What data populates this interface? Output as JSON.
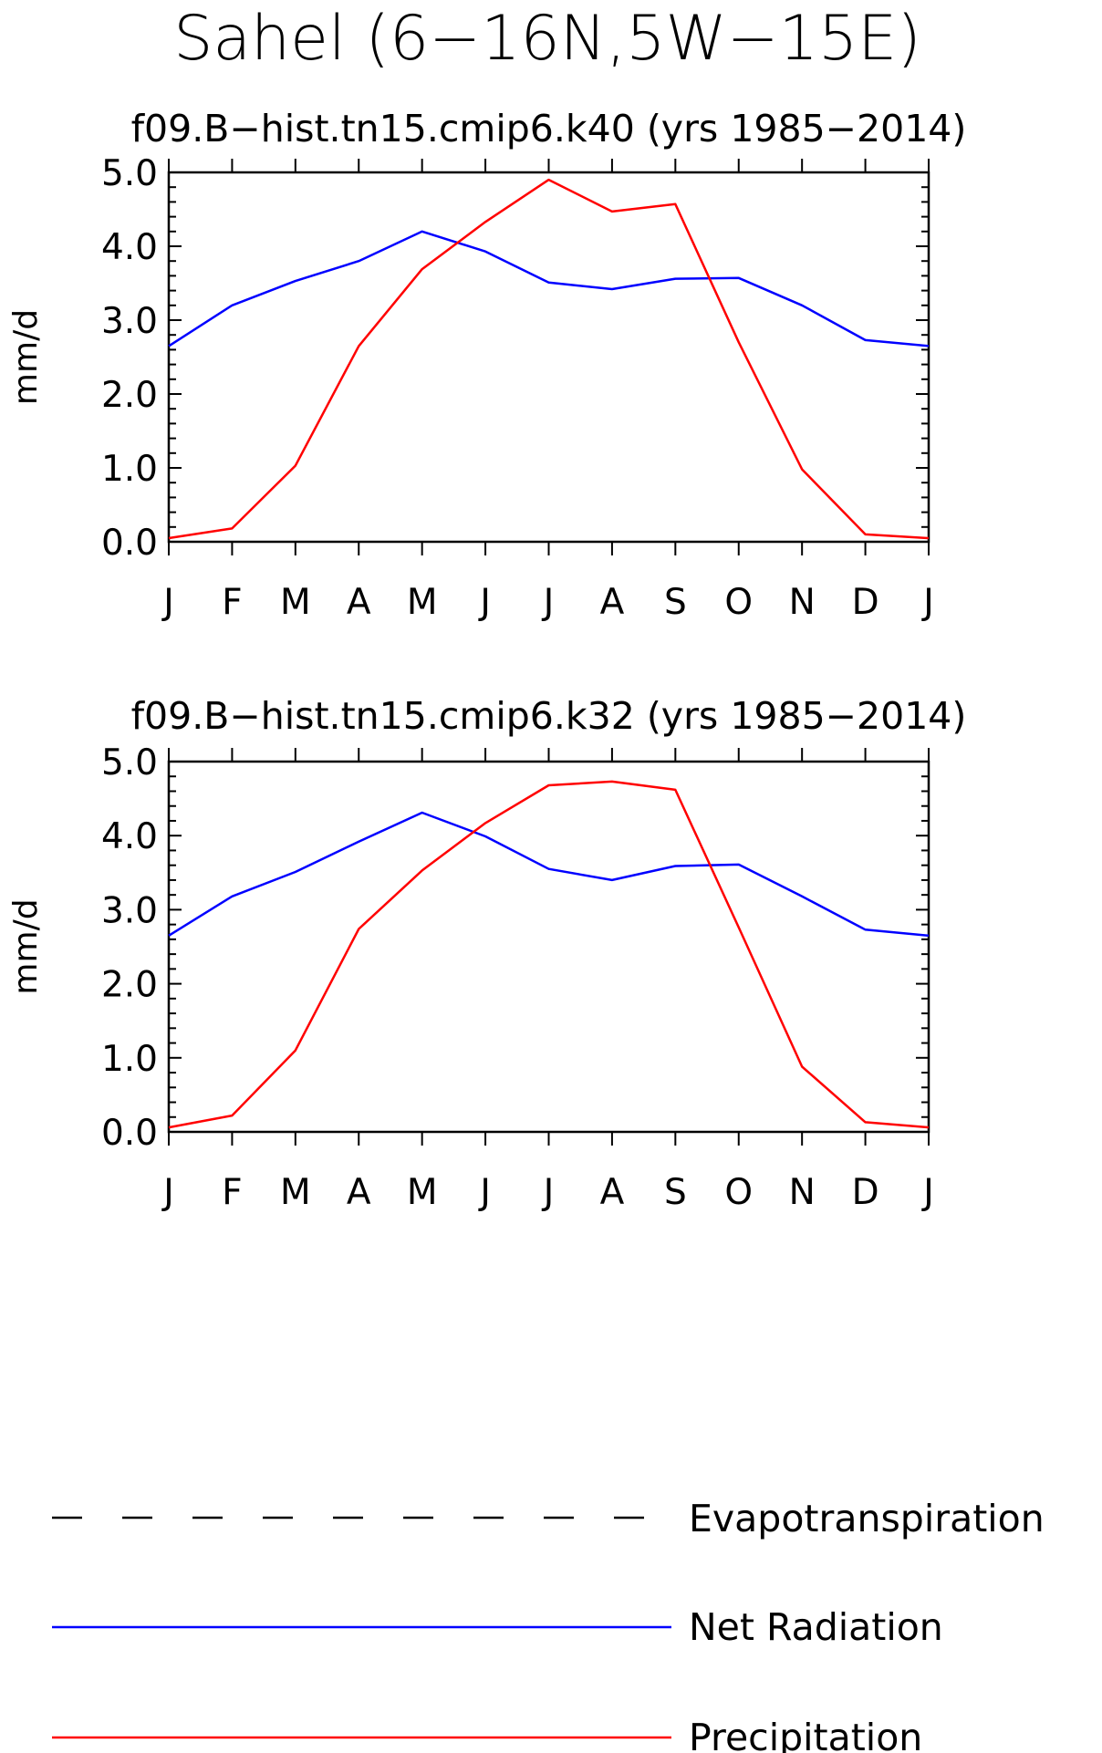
{
  "title": "Sahel (6−16N,5W−15E)",
  "chart_data": [
    {
      "type": "line",
      "title": "f09.B−hist.tn15.cmip6.k40 (yrs 1985−2014)",
      "xlabel": "",
      "ylabel": "mm/d",
      "categories": [
        "J",
        "F",
        "M",
        "A",
        "M",
        "J",
        "J",
        "A",
        "S",
        "O",
        "N",
        "D",
        "J"
      ],
      "ylim": [
        0,
        5
      ],
      "yticks": [
        "0.0",
        "1.0",
        "2.0",
        "3.0",
        "4.0",
        "5.0"
      ],
      "series": [
        {
          "name": "Net Radiation",
          "color": "#0000ff",
          "values": [
            2.65,
            3.2,
            3.53,
            3.8,
            4.2,
            3.93,
            3.51,
            3.42,
            3.56,
            3.57,
            3.2,
            2.73,
            2.65
          ]
        },
        {
          "name": "Precipitation",
          "color": "#ff0000",
          "values": [
            0.05,
            0.18,
            1.03,
            2.65,
            3.69,
            4.33,
            4.9,
            4.47,
            4.57,
            2.7,
            0.98,
            0.1,
            0.05
          ]
        }
      ]
    },
    {
      "type": "line",
      "title": "f09.B−hist.tn15.cmip6.k32 (yrs 1985−2014)",
      "xlabel": "",
      "ylabel": "mm/d",
      "categories": [
        "J",
        "F",
        "M",
        "A",
        "M",
        "J",
        "J",
        "A",
        "S",
        "O",
        "N",
        "D",
        "J"
      ],
      "ylim": [
        0,
        5
      ],
      "yticks": [
        "0.0",
        "1.0",
        "2.0",
        "3.0",
        "4.0",
        "5.0"
      ],
      "series": [
        {
          "name": "Net Radiation",
          "color": "#0000ff",
          "values": [
            2.65,
            3.18,
            3.51,
            3.92,
            4.31,
            3.99,
            3.55,
            3.4,
            3.59,
            3.61,
            3.18,
            2.73,
            2.65
          ]
        },
        {
          "name": "Precipitation",
          "color": "#ff0000",
          "values": [
            0.06,
            0.22,
            1.1,
            2.74,
            3.53,
            4.17,
            4.68,
            4.73,
            4.62,
            2.76,
            0.88,
            0.13,
            0.06
          ]
        }
      ]
    }
  ],
  "legend": [
    {
      "label": "Evapotranspiration",
      "color": "#000000",
      "style": "dashed"
    },
    {
      "label": "Net Radiation",
      "color": "#0000ff",
      "style": "solid"
    },
    {
      "label": "Precipitation",
      "color": "#ff0000",
      "style": "solid"
    }
  ]
}
